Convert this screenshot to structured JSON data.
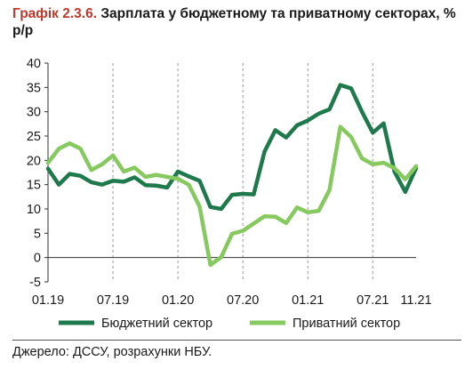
{
  "figure": {
    "prefix": "Графік 2.3.6.",
    "title": "Зарплата у бюджетному та приватному секторах, % р/р",
    "source": "Джерело: ДССУ, розрахунки НБУ."
  },
  "colors": {
    "title_prefix": "#c0392b",
    "budget": "#1e7a4c",
    "private": "#86c95f",
    "axis": "#333333",
    "grid": "#9a9a9a"
  },
  "chart_data": {
    "type": "line",
    "title": "Зарплата у бюджетному та приватному секторах, % р/р",
    "xlabel": "",
    "ylabel": "",
    "x": [
      "01.19",
      "02.19",
      "03.19",
      "04.19",
      "05.19",
      "06.19",
      "07.19",
      "08.19",
      "09.19",
      "10.19",
      "11.19",
      "12.19",
      "01.20",
      "02.20",
      "03.20",
      "04.20",
      "05.20",
      "06.20",
      "07.20",
      "08.20",
      "09.20",
      "10.20",
      "11.20",
      "12.20",
      "01.21",
      "02.21",
      "03.21",
      "04.21",
      "05.21",
      "06.21",
      "07.21",
      "08.21",
      "09.21",
      "10.21",
      "11.21"
    ],
    "x_tick_labels": [
      "01.19",
      "07.19",
      "01.20",
      "07.20",
      "01.21",
      "07.21",
      "11.21"
    ],
    "x_tick_positions": [
      "01.19",
      "07.19",
      "01.20",
      "07.20",
      "01.21",
      "07.21",
      "11.21"
    ],
    "ylim": [
      -5,
      40
    ],
    "yticks": [
      -5,
      0,
      5,
      10,
      15,
      20,
      25,
      30,
      35,
      40
    ],
    "grid": "vertical dashed at Jan and Jul",
    "legend": "bottom",
    "series": [
      {
        "name": "Бюджетний сектор",
        "color": "#1e7a4c",
        "values": [
          18.3,
          15.0,
          17.2,
          16.8,
          15.5,
          15.0,
          15.8,
          15.6,
          16.5,
          14.9,
          14.8,
          14.4,
          17.7,
          16.7,
          15.8,
          10.4,
          10.0,
          12.9,
          13.1,
          13.0,
          21.8,
          26.2,
          24.7,
          27.2,
          28.2,
          29.6,
          30.5,
          35.5,
          34.8,
          30.0,
          25.7,
          27.6,
          17.7,
          13.5,
          18.4
        ]
      },
      {
        "name": "Приватний сектор",
        "color": "#86c95f",
        "values": [
          19.5,
          22.4,
          23.5,
          22.4,
          18.0,
          19.2,
          21.0,
          17.7,
          18.5,
          16.6,
          17.0,
          16.6,
          16.2,
          15.0,
          10.5,
          -1.5,
          0.1,
          4.9,
          5.5,
          7.0,
          8.5,
          8.4,
          7.1,
          10.3,
          9.3,
          9.6,
          13.9,
          26.9,
          24.8,
          20.4,
          19.2,
          19.5,
          18.4,
          16.1,
          18.8
        ]
      }
    ]
  }
}
